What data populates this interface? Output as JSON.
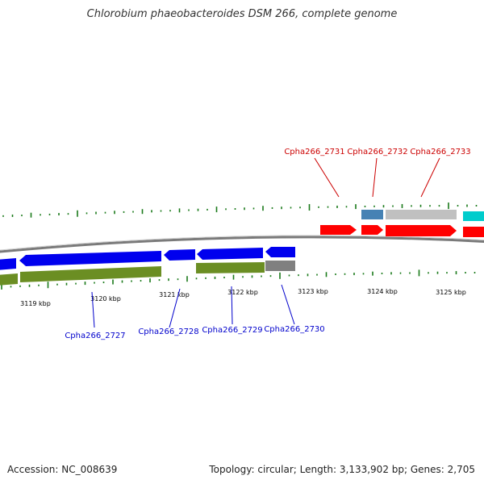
{
  "title": "Chlorobium phaeobacteroides DSM 266, complete genome",
  "accession": "Accession: NC_008639",
  "topology": "Topology: circular; Length: 3,133,902 bp; Genes: 2,705",
  "ticks": [
    "3119 kbp",
    "3120 kbp",
    "3121 kbp",
    "3122 kbp",
    "3123 kbp",
    "3124 kbp",
    "3125 kbp"
  ],
  "genes_top": [
    "Cpha266_2731",
    "Cpha266_2732",
    "Cpha266_2733"
  ],
  "genes_bottom": [
    "Cpha266_2727",
    "Cpha266_2728",
    "Cpha266_2729",
    "Cpha266_2730"
  ],
  "colors": {
    "forward": "#ff0000",
    "reverse": "#0000ee",
    "cds_green": "#6b8e23",
    "gray": "#808080",
    "light_gray": "#c0c0c0",
    "steel": "#4682b4",
    "cyan": "#00cccc",
    "gc": "#1a7a1a",
    "label_red": "#cc0000",
    "label_blue": "#0000cc"
  }
}
